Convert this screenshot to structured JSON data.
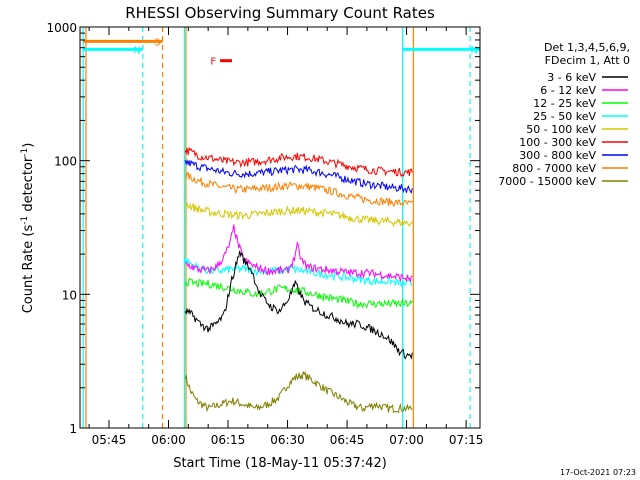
{
  "chart_data": {
    "type": "line",
    "title": "RHESSI Observing Summary Count Rates",
    "xlabel": "Start Time (18-May-11 05:37:42)",
    "ylabel_main": "Count Rate (s",
    "ylabel_sup1": "-1",
    "ylabel_mid": " detector",
    "ylabel_sup2": "-1",
    "ylabel_end": ")",
    "y_scale": "log",
    "ylim": [
      1,
      1000
    ],
    "x_start_minutes": 337.7,
    "x_end_minutes": 438.5,
    "x_ticks": [
      {
        "minute": 345,
        "label": "05:45"
      },
      {
        "minute": 360,
        "label": "06:00"
      },
      {
        "minute": 375,
        "label": "06:15"
      },
      {
        "minute": 390,
        "label": "06:30"
      },
      {
        "minute": 405,
        "label": "06:45"
      },
      {
        "minute": 420,
        "label": "07:00"
      },
      {
        "minute": 435,
        "label": "07:15"
      }
    ],
    "y_ticks": [
      {
        "value": 1,
        "label": "1"
      },
      {
        "value": 10,
        "label": "10"
      },
      {
        "value": 100,
        "label": "100"
      },
      {
        "value": 1000,
        "label": "1000"
      }
    ],
    "legend": {
      "placement": "right",
      "header1": "Det 1,3,4,5,6,9,",
      "header2": "FDecim 1, Att 0",
      "entries": [
        {
          "label": "3 - 6 keV",
          "color": "#000000"
        },
        {
          "label": "6 - 12 keV",
          "color": "#ff00ff"
        },
        {
          "label": "12 - 25 keV",
          "color": "#00ff00"
        },
        {
          "label": "25 - 50 keV",
          "color": "#00ffff"
        },
        {
          "label": "50 - 100 keV",
          "color": "#d4c800"
        },
        {
          "label": "100 - 300 keV",
          "color": "#ff0000"
        },
        {
          "label": "300 - 800 keV",
          "color": "#0000ff"
        },
        {
          "label": "800 - 7000 keV",
          "color": "#ff8000"
        },
        {
          "label": "7000 - 15000 keV",
          "color": "#808000"
        }
      ]
    },
    "series": [
      {
        "name": "3 - 6 keV",
        "color": "#000000",
        "points": [
          [
            364.2,
            7.5
          ],
          [
            366,
            7
          ],
          [
            368,
            6
          ],
          [
            370,
            5.5
          ],
          [
            372,
            6
          ],
          [
            374,
            7
          ],
          [
            376,
            13
          ],
          [
            378,
            21
          ],
          [
            379,
            18
          ],
          [
            381,
            15
          ],
          [
            383,
            10
          ],
          [
            386,
            8
          ],
          [
            388,
            7.5
          ],
          [
            390,
            9
          ],
          [
            392,
            12
          ],
          [
            394,
            9
          ],
          [
            396,
            8
          ],
          [
            398,
            7.5
          ],
          [
            400,
            7
          ],
          [
            403,
            6.5
          ],
          [
            405,
            6
          ],
          [
            408,
            6
          ],
          [
            411,
            5.5
          ],
          [
            414,
            5
          ],
          [
            416,
            4.5
          ],
          [
            418,
            3.8
          ],
          [
            420,
            3.5
          ],
          [
            421.5,
            3.5
          ]
        ]
      },
      {
        "name": "6 - 12 keV",
        "color": "#ff00ff",
        "points": [
          [
            364.2,
            17
          ],
          [
            367,
            15.5
          ],
          [
            370,
            15
          ],
          [
            372,
            16
          ],
          [
            374,
            19
          ],
          [
            375.5,
            24
          ],
          [
            376.5,
            32
          ],
          [
            377.5,
            24
          ],
          [
            379,
            18
          ],
          [
            382,
            16
          ],
          [
            385,
            15
          ],
          [
            388,
            15
          ],
          [
            390,
            15
          ],
          [
            391.5,
            18
          ],
          [
            392.5,
            23
          ],
          [
            393.5,
            18
          ],
          [
            395,
            16
          ],
          [
            398,
            15.5
          ],
          [
            402,
            15
          ],
          [
            406,
            14.5
          ],
          [
            410,
            14.5
          ],
          [
            414,
            14
          ],
          [
            418,
            13.5
          ],
          [
            421.5,
            13
          ]
        ]
      },
      {
        "name": "12 - 25 keV",
        "color": "#00ff00",
        "points": [
          [
            364.2,
            12.5
          ],
          [
            367,
            12
          ],
          [
            370,
            12
          ],
          [
            373,
            11.5
          ],
          [
            376,
            11
          ],
          [
            379,
            10.5
          ],
          [
            382,
            10
          ],
          [
            385,
            10.5
          ],
          [
            388,
            11
          ],
          [
            391,
            11
          ],
          [
            394,
            10.5
          ],
          [
            397,
            10
          ],
          [
            400,
            9.5
          ],
          [
            404,
            9
          ],
          [
            408,
            8.5
          ],
          [
            412,
            8.5
          ],
          [
            416,
            8.5
          ],
          [
            419,
            8.5
          ],
          [
            421.5,
            8.5
          ]
        ]
      },
      {
        "name": "25 - 50 keV",
        "color": "#00ffff",
        "points": [
          [
            364.2,
            18
          ],
          [
            367,
            16
          ],
          [
            370,
            15
          ],
          [
            373,
            15
          ],
          [
            376,
            15.5
          ],
          [
            379,
            15.5
          ],
          [
            382,
            15
          ],
          [
            385,
            15
          ],
          [
            388,
            15
          ],
          [
            391,
            15.5
          ],
          [
            394,
            15
          ],
          [
            397,
            14.5
          ],
          [
            400,
            14
          ],
          [
            404,
            13.5
          ],
          [
            408,
            13
          ],
          [
            412,
            12.5
          ],
          [
            416,
            12.5
          ],
          [
            419,
            12
          ],
          [
            421.5,
            12
          ]
        ]
      },
      {
        "name": "50 - 100 keV",
        "color": "#d4c800",
        "points": [
          [
            364.2,
            48
          ],
          [
            366,
            45
          ],
          [
            368,
            43
          ],
          [
            371,
            41
          ],
          [
            374,
            40
          ],
          [
            377,
            39
          ],
          [
            380,
            39
          ],
          [
            383,
            40
          ],
          [
            386,
            41
          ],
          [
            389,
            42
          ],
          [
            392,
            42.5
          ],
          [
            395,
            42
          ],
          [
            398,
            41
          ],
          [
            401,
            40
          ],
          [
            404,
            38.5
          ],
          [
            407,
            37
          ],
          [
            410,
            36
          ],
          [
            413,
            35.5
          ],
          [
            416,
            35
          ],
          [
            419,
            34.5
          ],
          [
            421.5,
            34
          ]
        ]
      },
      {
        "name": "100 - 300 keV",
        "color": "#ff0000",
        "points": [
          [
            364.2,
            120
          ],
          [
            366,
            115
          ],
          [
            368,
            108
          ],
          [
            371,
            104
          ],
          [
            374,
            99
          ],
          [
            377,
            97
          ],
          [
            380,
            97
          ],
          [
            383,
            99
          ],
          [
            386,
            102
          ],
          [
            389,
            106
          ],
          [
            392,
            108
          ],
          [
            395,
            106
          ],
          [
            398,
            102
          ],
          [
            401,
            97
          ],
          [
            404,
            93
          ],
          [
            407,
            89
          ],
          [
            410,
            86
          ],
          [
            413,
            84
          ],
          [
            416,
            83
          ],
          [
            419,
            82
          ],
          [
            421.5,
            82
          ]
        ]
      },
      {
        "name": "300 - 800 keV",
        "color": "#0000ff",
        "points": [
          [
            364.2,
            98
          ],
          [
            366,
            94
          ],
          [
            368,
            90
          ],
          [
            371,
            86
          ],
          [
            374,
            82
          ],
          [
            377,
            80
          ],
          [
            380,
            80
          ],
          [
            383,
            81
          ],
          [
            386,
            83
          ],
          [
            389,
            85
          ],
          [
            392,
            86
          ],
          [
            395,
            85
          ],
          [
            398,
            82
          ],
          [
            401,
            78
          ],
          [
            404,
            74
          ],
          [
            407,
            70
          ],
          [
            410,
            67
          ],
          [
            413,
            65
          ],
          [
            416,
            63
          ],
          [
            419,
            62
          ],
          [
            421.5,
            61
          ]
        ]
      },
      {
        "name": "800 - 7000 keV",
        "color": "#ff8000",
        "points": [
          [
            364.2,
            78
          ],
          [
            366,
            74
          ],
          [
            368,
            70
          ],
          [
            371,
            66
          ],
          [
            374,
            63
          ],
          [
            377,
            61
          ],
          [
            380,
            61
          ],
          [
            383,
            62
          ],
          [
            386,
            63
          ],
          [
            389,
            64.5
          ],
          [
            392,
            65
          ],
          [
            395,
            64
          ],
          [
            398,
            62
          ],
          [
            401,
            59
          ],
          [
            404,
            56
          ],
          [
            407,
            53
          ],
          [
            410,
            51
          ],
          [
            413,
            50
          ],
          [
            416,
            49
          ],
          [
            419,
            48
          ],
          [
            421.5,
            47
          ]
        ]
      },
      {
        "name": "7000 - 15000 keV",
        "color": "#808000",
        "points": [
          [
            364.2,
            2.5
          ],
          [
            365.5,
            1.9
          ],
          [
            367,
            1.6
          ],
          [
            370,
            1.4
          ],
          [
            373,
            1.5
          ],
          [
            376,
            1.6
          ],
          [
            379,
            1.5
          ],
          [
            382,
            1.4
          ],
          [
            385,
            1.5
          ],
          [
            388,
            1.7
          ],
          [
            390,
            2.1
          ],
          [
            392,
            2.4
          ],
          [
            394,
            2.5
          ],
          [
            396,
            2.3
          ],
          [
            398,
            2.1
          ],
          [
            400,
            1.9
          ],
          [
            403,
            1.7
          ],
          [
            406,
            1.5
          ],
          [
            409,
            1.4
          ],
          [
            412,
            1.5
          ],
          [
            415,
            1.4
          ],
          [
            418,
            1.4
          ],
          [
            421.5,
            1.4
          ]
        ]
      }
    ],
    "flag_bars": [
      {
        "label": "S",
        "color": "#ff8000",
        "start": 338.5,
        "end": 358.5,
        "value": 780
      },
      {
        "label": "N",
        "color": "#00ffff",
        "start": 338.5,
        "end": 353.5,
        "value": 680
      },
      {
        "label": "N",
        "color": "#00ffff",
        "start": 419,
        "end": 438.5,
        "value": 680
      },
      {
        "label": "F",
        "color": "#ff0000",
        "start": 373,
        "end": 376,
        "value": 560
      }
    ],
    "flag_lines": [
      {
        "color": "#00ffff",
        "minute": 338.5,
        "style": "solid"
      },
      {
        "color": "#ff8000",
        "minute": 339.2,
        "style": "solid"
      },
      {
        "color": "#00ffff",
        "minute": 353.5,
        "style": "dashed"
      },
      {
        "color": "#ff8000",
        "minute": 358.5,
        "style": "dashed"
      },
      {
        "color": "#00ffff",
        "minute": 364.0,
        "style": "solid"
      },
      {
        "color": "#ff8000",
        "minute": 364.4,
        "style": "solid"
      },
      {
        "color": "#00ffff",
        "minute": 419.0,
        "style": "solid"
      },
      {
        "color": "#ff8000",
        "minute": 421.7,
        "style": "solid"
      },
      {
        "color": "#00ffff",
        "minute": 436.0,
        "style": "dashed"
      }
    ],
    "footer_date": "17-Oct-2021 07:23"
  }
}
